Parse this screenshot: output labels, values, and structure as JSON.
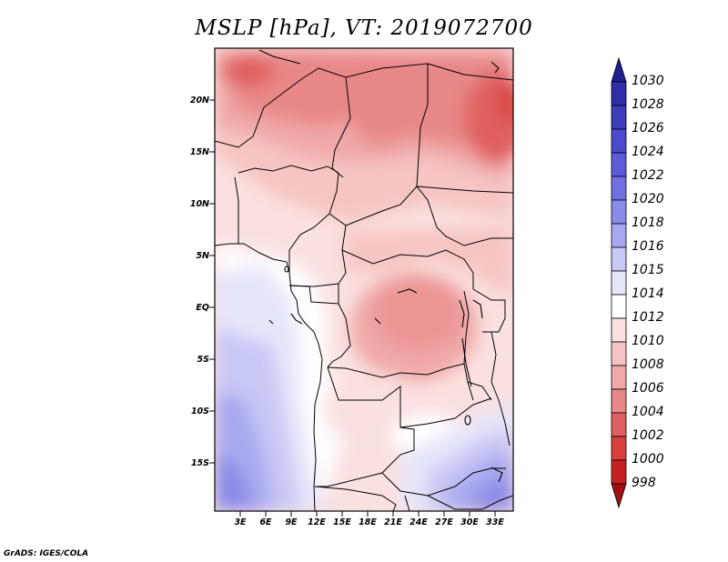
{
  "title": "MSLP [hPa], VT: 2019072700",
  "footer": "GrADS: IGES/COLA",
  "map": {
    "lat_labels": [
      "20N",
      "15N",
      "10N",
      "5N",
      "EQ",
      "5S",
      "10S",
      "15S"
    ],
    "lon_labels": [
      "3E",
      "6E",
      "9E",
      "12E",
      "15E",
      "18E",
      "21E",
      "24E",
      "27E",
      "30E",
      "33E"
    ]
  },
  "colorbar": {
    "levels": [
      "1030",
      "1028",
      "1026",
      "1024",
      "1022",
      "1020",
      "1018",
      "1016",
      "1015",
      "1014",
      "1012",
      "1010",
      "1008",
      "1006",
      "1004",
      "1002",
      "1000",
      "998"
    ],
    "colors": [
      "#1f1f8f",
      "#2e2ea8",
      "#3c3cbd",
      "#4a4acc",
      "#5c5cd8",
      "#7070e0",
      "#8a8ae8",
      "#a8a8f0",
      "#c8c8f5",
      "#e6e6fa",
      "#ffffff",
      "#fbe0e0",
      "#f6c4c4",
      "#f0a8a8",
      "#e88888",
      "#e06060",
      "#d84040",
      "#c82020",
      "#a01010"
    ]
  }
}
